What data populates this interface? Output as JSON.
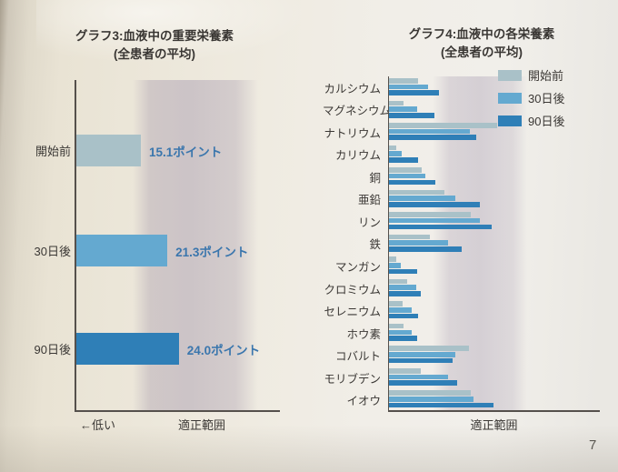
{
  "page": {
    "number": "7"
  },
  "colors": {
    "series": [
      "#a9c1c8",
      "#64a9d0",
      "#2f7fb7"
    ],
    "value_text": "#3a76ad",
    "band_left": "#c6bbc1",
    "band_right": "#cbc4cd",
    "axis": "#55504c",
    "paper": "#ece7da"
  },
  "chart_data": [
    {
      "type": "bar",
      "orientation": "horizontal",
      "title": "グラフ3:血液中の重要栄養素",
      "subtitle": "(全患者の平均)",
      "categories": [
        "開始前",
        "30日後",
        "90日後"
      ],
      "values": [
        15.1,
        21.3,
        24.0
      ],
      "value_labels": [
        "15.1ポイント",
        "21.3ポイント",
        "24.0ポイント"
      ],
      "unit": "ポイント",
      "xlabel_left": "←低い",
      "xlabel_range": "適正範囲",
      "xlim": [
        0,
        30
      ],
      "grid": false,
      "legend_position": "none",
      "shaded_band": "適正範囲 (vertical lavender band)"
    },
    {
      "type": "bar",
      "orientation": "horizontal",
      "title": "グラフ4:血液中の各栄養素",
      "subtitle": "(全患者の平均)",
      "categories": [
        "カルシウム",
        "マグネシウム",
        "ナトリウム",
        "カリウム",
        "銅",
        "亜鉛",
        "リン",
        "鉄",
        "マンガン",
        "クロミウム",
        "セレニウム",
        "ホウ素",
        "コバルト",
        "モリブデン",
        "イオウ"
      ],
      "series": [
        {
          "name": "開始前",
          "values": [
            32,
            16,
            119,
            8,
            36,
            61,
            90,
            45,
            8,
            20,
            15,
            16,
            88,
            35,
            90
          ]
        },
        {
          "name": "30日後",
          "values": [
            43,
            31,
            89,
            14,
            40,
            73,
            100,
            65,
            13,
            30,
            25,
            25,
            73,
            65,
            93
          ]
        },
        {
          "name": "90日後",
          "values": [
            55,
            50,
            96,
            32,
            51,
            100,
            113,
            80,
            31,
            35,
            32,
            31,
            70,
            75,
            115
          ]
        }
      ],
      "values_note": "relative bar lengths (axis unlabeled), 0-120 scale estimated from image",
      "xlabel_range": "適正範囲",
      "grid": false,
      "legend_position": "top-right",
      "shaded_band": "適正範囲 (vertical lavender band)"
    }
  ]
}
